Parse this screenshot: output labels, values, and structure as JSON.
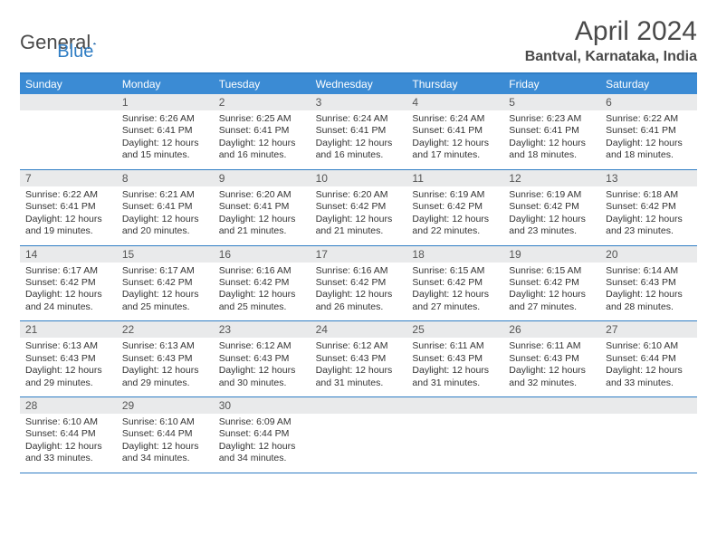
{
  "logo": {
    "part1": "General",
    "part2": "Blue"
  },
  "title": {
    "month": "April 2024",
    "location": "Bantval, Karnataka, India"
  },
  "colors": {
    "header_bar": "#3b8bd4",
    "border": "#2f7dc4",
    "daynum_bg": "#e9eaeb",
    "text": "#4a4a4a"
  },
  "dow": [
    "Sunday",
    "Monday",
    "Tuesday",
    "Wednesday",
    "Thursday",
    "Friday",
    "Saturday"
  ],
  "grid": {
    "columns": 7,
    "rows": 5,
    "start_offset": 1,
    "days_in_month": 30
  },
  "days": {
    "1": {
      "sunrise": "Sunrise: 6:26 AM",
      "sunset": "Sunset: 6:41 PM",
      "daylight": "Daylight: 12 hours and 15 minutes."
    },
    "2": {
      "sunrise": "Sunrise: 6:25 AM",
      "sunset": "Sunset: 6:41 PM",
      "daylight": "Daylight: 12 hours and 16 minutes."
    },
    "3": {
      "sunrise": "Sunrise: 6:24 AM",
      "sunset": "Sunset: 6:41 PM",
      "daylight": "Daylight: 12 hours and 16 minutes."
    },
    "4": {
      "sunrise": "Sunrise: 6:24 AM",
      "sunset": "Sunset: 6:41 PM",
      "daylight": "Daylight: 12 hours and 17 minutes."
    },
    "5": {
      "sunrise": "Sunrise: 6:23 AM",
      "sunset": "Sunset: 6:41 PM",
      "daylight": "Daylight: 12 hours and 18 minutes."
    },
    "6": {
      "sunrise": "Sunrise: 6:22 AM",
      "sunset": "Sunset: 6:41 PM",
      "daylight": "Daylight: 12 hours and 18 minutes."
    },
    "7": {
      "sunrise": "Sunrise: 6:22 AM",
      "sunset": "Sunset: 6:41 PM",
      "daylight": "Daylight: 12 hours and 19 minutes."
    },
    "8": {
      "sunrise": "Sunrise: 6:21 AM",
      "sunset": "Sunset: 6:41 PM",
      "daylight": "Daylight: 12 hours and 20 minutes."
    },
    "9": {
      "sunrise": "Sunrise: 6:20 AM",
      "sunset": "Sunset: 6:41 PM",
      "daylight": "Daylight: 12 hours and 21 minutes."
    },
    "10": {
      "sunrise": "Sunrise: 6:20 AM",
      "sunset": "Sunset: 6:42 PM",
      "daylight": "Daylight: 12 hours and 21 minutes."
    },
    "11": {
      "sunrise": "Sunrise: 6:19 AM",
      "sunset": "Sunset: 6:42 PM",
      "daylight": "Daylight: 12 hours and 22 minutes."
    },
    "12": {
      "sunrise": "Sunrise: 6:19 AM",
      "sunset": "Sunset: 6:42 PM",
      "daylight": "Daylight: 12 hours and 23 minutes."
    },
    "13": {
      "sunrise": "Sunrise: 6:18 AM",
      "sunset": "Sunset: 6:42 PM",
      "daylight": "Daylight: 12 hours and 23 minutes."
    },
    "14": {
      "sunrise": "Sunrise: 6:17 AM",
      "sunset": "Sunset: 6:42 PM",
      "daylight": "Daylight: 12 hours and 24 minutes."
    },
    "15": {
      "sunrise": "Sunrise: 6:17 AM",
      "sunset": "Sunset: 6:42 PM",
      "daylight": "Daylight: 12 hours and 25 minutes."
    },
    "16": {
      "sunrise": "Sunrise: 6:16 AM",
      "sunset": "Sunset: 6:42 PM",
      "daylight": "Daylight: 12 hours and 25 minutes."
    },
    "17": {
      "sunrise": "Sunrise: 6:16 AM",
      "sunset": "Sunset: 6:42 PM",
      "daylight": "Daylight: 12 hours and 26 minutes."
    },
    "18": {
      "sunrise": "Sunrise: 6:15 AM",
      "sunset": "Sunset: 6:42 PM",
      "daylight": "Daylight: 12 hours and 27 minutes."
    },
    "19": {
      "sunrise": "Sunrise: 6:15 AM",
      "sunset": "Sunset: 6:42 PM",
      "daylight": "Daylight: 12 hours and 27 minutes."
    },
    "20": {
      "sunrise": "Sunrise: 6:14 AM",
      "sunset": "Sunset: 6:43 PM",
      "daylight": "Daylight: 12 hours and 28 minutes."
    },
    "21": {
      "sunrise": "Sunrise: 6:13 AM",
      "sunset": "Sunset: 6:43 PM",
      "daylight": "Daylight: 12 hours and 29 minutes."
    },
    "22": {
      "sunrise": "Sunrise: 6:13 AM",
      "sunset": "Sunset: 6:43 PM",
      "daylight": "Daylight: 12 hours and 29 minutes."
    },
    "23": {
      "sunrise": "Sunrise: 6:12 AM",
      "sunset": "Sunset: 6:43 PM",
      "daylight": "Daylight: 12 hours and 30 minutes."
    },
    "24": {
      "sunrise": "Sunrise: 6:12 AM",
      "sunset": "Sunset: 6:43 PM",
      "daylight": "Daylight: 12 hours and 31 minutes."
    },
    "25": {
      "sunrise": "Sunrise: 6:11 AM",
      "sunset": "Sunset: 6:43 PM",
      "daylight": "Daylight: 12 hours and 31 minutes."
    },
    "26": {
      "sunrise": "Sunrise: 6:11 AM",
      "sunset": "Sunset: 6:43 PM",
      "daylight": "Daylight: 12 hours and 32 minutes."
    },
    "27": {
      "sunrise": "Sunrise: 6:10 AM",
      "sunset": "Sunset: 6:44 PM",
      "daylight": "Daylight: 12 hours and 33 minutes."
    },
    "28": {
      "sunrise": "Sunrise: 6:10 AM",
      "sunset": "Sunset: 6:44 PM",
      "daylight": "Daylight: 12 hours and 33 minutes."
    },
    "29": {
      "sunrise": "Sunrise: 6:10 AM",
      "sunset": "Sunset: 6:44 PM",
      "daylight": "Daylight: 12 hours and 34 minutes."
    },
    "30": {
      "sunrise": "Sunrise: 6:09 AM",
      "sunset": "Sunset: 6:44 PM",
      "daylight": "Daylight: 12 hours and 34 minutes."
    }
  }
}
